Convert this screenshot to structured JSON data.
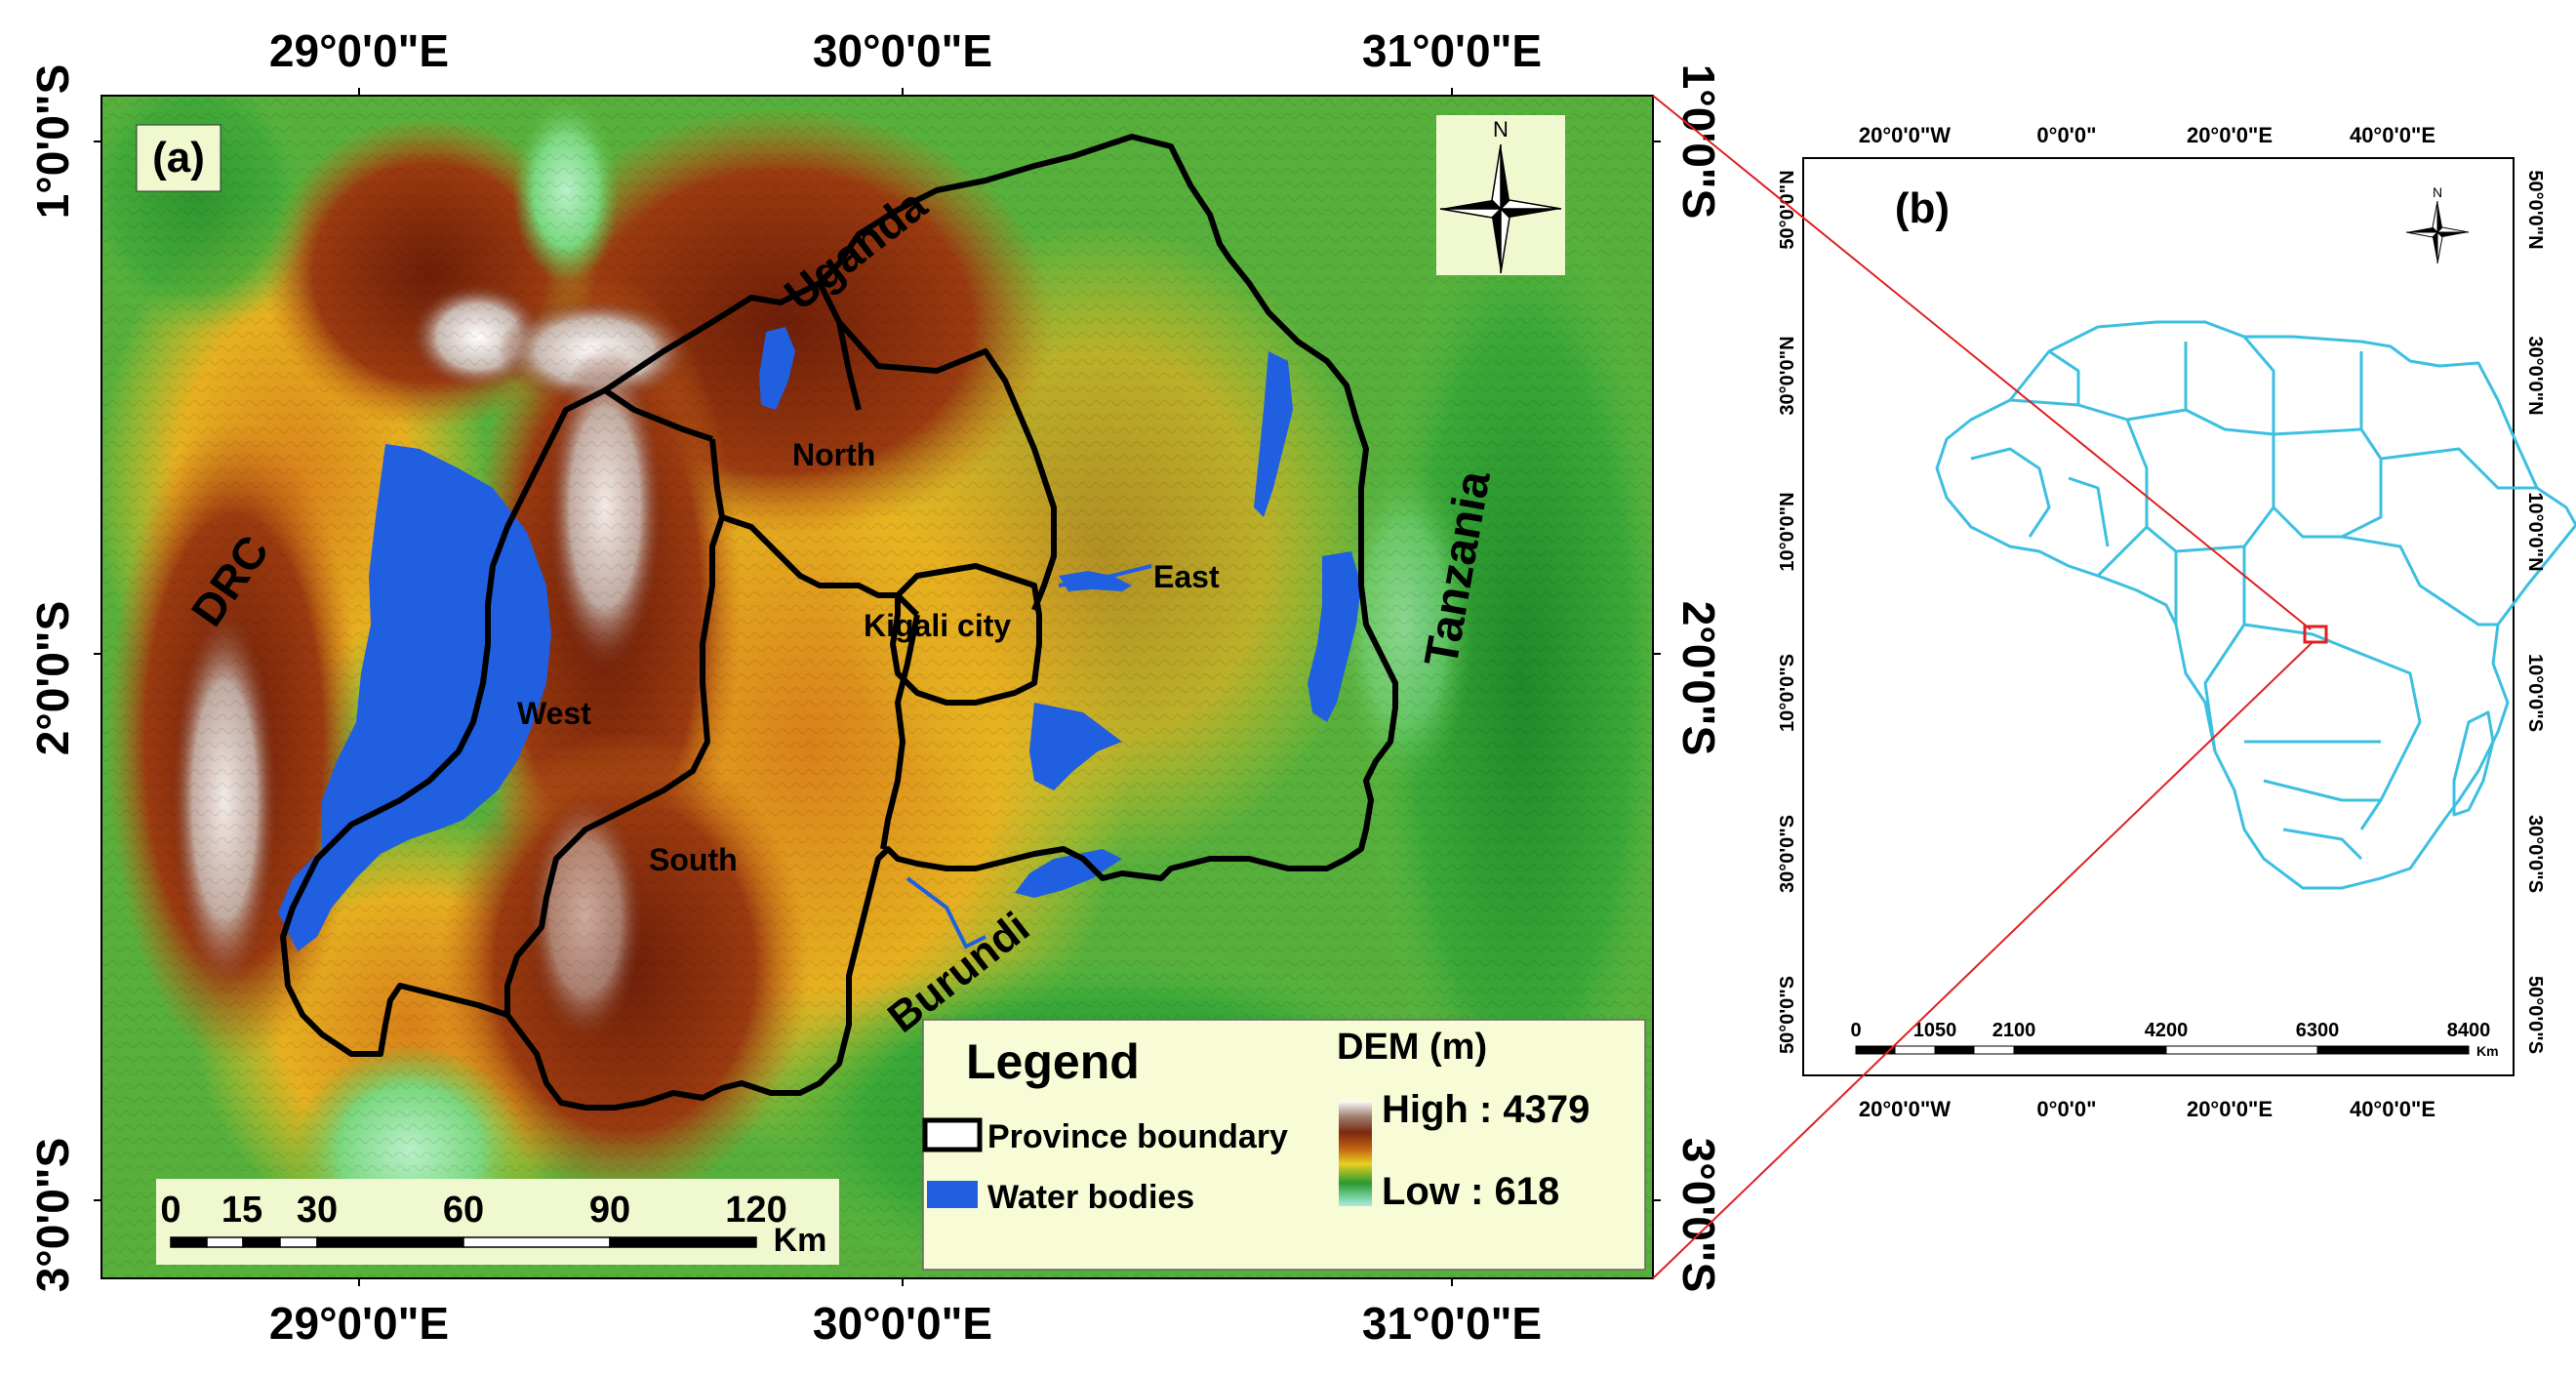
{
  "panel_a": {
    "label": "(a)",
    "lon_labels": [
      "29°0'0\"E",
      "30°0'0\"E",
      "31°0'0\"E"
    ],
    "lat_labels": [
      "1°0'0\"S",
      "2°0'0\"S",
      "3°0'0\"S"
    ],
    "countries": {
      "uganda": "Uganda",
      "drc": "DRC",
      "tanzania": "Tanzania",
      "burundi": "Burundi"
    },
    "provinces": {
      "north": "North",
      "east": "East",
      "kigali": "Kigali city",
      "west": "West",
      "south": "South"
    },
    "north_arrow": "N",
    "scale_bar": {
      "ticks": [
        "0",
        "15",
        "30",
        "60",
        "90",
        "120"
      ],
      "unit": "Km"
    },
    "legend": {
      "title": "Legend",
      "province_boundary": "Province boundary",
      "water_bodies": "Water bodies",
      "dem_title": "DEM (m)",
      "high": "High : 4379",
      "low": "Low : 618"
    },
    "colors": {
      "water": "#1f5fe0",
      "boundary": "#000000",
      "legend_bg": "#f7fbd6"
    }
  },
  "panel_b": {
    "label": "(b)",
    "lon_labels": [
      "20°0'0\"W",
      "0°0'0\"",
      "20°0'0\"E",
      "40°0'0\"E"
    ],
    "lat_labels": [
      "50°0'0\"N",
      "30°0'0\"N",
      "10°0'0\"N",
      "10°0'0\"S",
      "30°0'0\"S",
      "50°0'0\"S"
    ],
    "north_arrow": "N",
    "scale_bar": {
      "ticks": [
        "0",
        "1050",
        "2100",
        "4200",
        "6300",
        "8400"
      ],
      "unit": "Km"
    },
    "colors": {
      "continent_outline": "#3dbfe0",
      "study_area_box": "#e02020",
      "connector": "#e02020"
    }
  }
}
